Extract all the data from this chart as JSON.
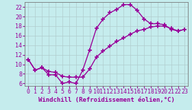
{
  "xlabel": "Windchill (Refroidissement éolien,°C)",
  "bg_color": "#c5eced",
  "line_color": "#990099",
  "marker": "+",
  "markersize": 4,
  "markeredgewidth": 1.2,
  "linewidth": 1.0,
  "xlim": [
    -0.5,
    23.5
  ],
  "ylim": [
    5.5,
    23.0
  ],
  "xticks": [
    0,
    1,
    2,
    3,
    4,
    5,
    6,
    7,
    8,
    9,
    10,
    11,
    12,
    13,
    14,
    15,
    16,
    17,
    18,
    19,
    20,
    21,
    22,
    23
  ],
  "yticks": [
    6,
    8,
    10,
    12,
    14,
    16,
    18,
    20,
    22
  ],
  "curve1_x": [
    0,
    1,
    2,
    3,
    4,
    5,
    6,
    7,
    8,
    9,
    10,
    11,
    12,
    13,
    14,
    15,
    16,
    17,
    18,
    19,
    20,
    21,
    22,
    23
  ],
  "curve1_y": [
    11.0,
    8.8,
    9.3,
    7.8,
    7.8,
    6.0,
    6.3,
    6.0,
    8.8,
    13.0,
    17.5,
    19.5,
    20.8,
    21.5,
    22.5,
    22.5,
    21.3,
    19.5,
    18.5,
    18.5,
    18.3,
    17.3,
    17.0,
    17.3
  ],
  "curve2_x": [
    0,
    1,
    2,
    3,
    4,
    5,
    6,
    7,
    8,
    9,
    10,
    11,
    12,
    13,
    14,
    15,
    16,
    17,
    18,
    19,
    20,
    21,
    22,
    23
  ],
  "curve2_y": [
    11.0,
    8.8,
    9.3,
    8.5,
    8.3,
    7.5,
    7.3,
    7.3,
    7.3,
    9.0,
    11.5,
    12.8,
    13.8,
    14.8,
    15.5,
    16.3,
    17.0,
    17.3,
    17.8,
    18.0,
    18.0,
    17.5,
    17.0,
    17.3
  ],
  "grid_color": "#b0cccc",
  "tick_fontsize": 6,
  "xlabel_fontsize": 6.5
}
